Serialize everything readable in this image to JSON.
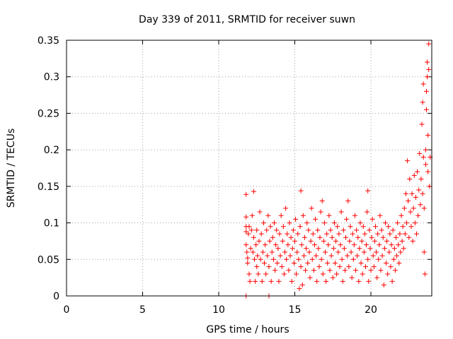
{
  "chart_data": {
    "type": "scatter",
    "title": "Day 339 of 2011, SRMTID for receiver suwn",
    "xlabel": "GPS time / hours",
    "ylabel": "SRMTID / TECUs",
    "xlim": [
      0,
      24
    ],
    "ylim": [
      0,
      0.35
    ],
    "xticks": [
      0,
      5,
      10,
      15,
      20
    ],
    "xtick_labels": [
      "0",
      "5",
      "10",
      "15",
      "20"
    ],
    "yticks": [
      0,
      0.05,
      0.1,
      0.15,
      0.2,
      0.25,
      0.3,
      0.35
    ],
    "ytick_labels": [
      "0",
      "0.05",
      "0.1",
      "0.15",
      "0.2",
      "0.25",
      "0.3",
      "0.35"
    ],
    "grid": true,
    "marker": "+",
    "color": "#ff0000",
    "series": [
      {
        "points": [
          [
            11.8,
            0.139
          ],
          [
            11.8,
            0.108
          ],
          [
            11.8,
            0.095
          ],
          [
            11.8,
            0.088
          ],
          [
            11.8,
            0.07
          ],
          [
            11.8,
            0.0
          ],
          [
            11.85,
            0.06
          ],
          [
            11.9,
            0.052
          ],
          [
            11.9,
            0.045
          ],
          [
            11.95,
            0.085
          ],
          [
            12.0,
            0.03
          ],
          [
            12.0,
            0.095
          ],
          [
            12.05,
            0.02
          ],
          [
            12.1,
            0.065
          ],
          [
            12.15,
            0.09
          ],
          [
            12.2,
            0.11
          ],
          [
            12.25,
            0.06
          ],
          [
            12.3,
            0.143
          ],
          [
            12.3,
            0.08
          ],
          [
            12.35,
            0.05
          ],
          [
            12.4,
            0.02
          ],
          [
            12.45,
            0.07
          ],
          [
            12.5,
            0.04
          ],
          [
            12.5,
            0.09
          ],
          [
            12.55,
            0.055
          ],
          [
            12.6,
            0.03
          ],
          [
            12.65,
            0.075
          ],
          [
            12.7,
            0.115
          ],
          [
            12.75,
            0.05
          ],
          [
            12.8,
            0.085
          ],
          [
            12.85,
            0.02
          ],
          [
            12.9,
            0.06
          ],
          [
            12.95,
            0.1
          ],
          [
            13.0,
            0.045
          ],
          [
            13.05,
            0.07
          ],
          [
            13.1,
            0.03
          ],
          [
            13.15,
            0.09
          ],
          [
            13.2,
            0.055
          ],
          [
            13.25,
            0.11
          ],
          [
            13.3,
            0.04
          ],
          [
            13.3,
            0.0
          ],
          [
            13.35,
            0.075
          ],
          [
            13.4,
            0.095
          ],
          [
            13.45,
            0.02
          ],
          [
            13.5,
            0.06
          ],
          [
            13.55,
            0.08
          ],
          [
            13.6,
            0.05
          ],
          [
            13.65,
            0.1
          ],
          [
            13.7,
            0.035
          ],
          [
            13.75,
            0.07
          ],
          [
            13.8,
            0.09
          ],
          [
            13.85,
            0.045
          ],
          [
            13.9,
            0.065
          ],
          [
            13.95,
            0.02
          ],
          [
            14.0,
            0.085
          ],
          [
            14.05,
            0.055
          ],
          [
            14.1,
            0.11
          ],
          [
            14.15,
            0.04
          ],
          [
            14.2,
            0.075
          ],
          [
            14.25,
            0.095
          ],
          [
            14.3,
            0.03
          ],
          [
            14.35,
            0.06
          ],
          [
            14.4,
            0.12
          ],
          [
            14.45,
            0.05
          ],
          [
            14.5,
            0.085
          ],
          [
            14.55,
            0.07
          ],
          [
            14.6,
            0.035
          ],
          [
            14.65,
            0.1
          ],
          [
            14.7,
            0.055
          ],
          [
            14.75,
            0.08
          ],
          [
            14.8,
            0.02
          ],
          [
            14.85,
            0.065
          ],
          [
            14.9,
            0.09
          ],
          [
            14.95,
            0.045
          ],
          [
            15.0,
            0.075
          ],
          [
            15.05,
            0.105
          ],
          [
            15.1,
            0.03
          ],
          [
            15.15,
            0.06
          ],
          [
            15.2,
            0.085
          ],
          [
            15.25,
            0.05
          ],
          [
            15.3,
            0.01
          ],
          [
            15.35,
            0.095
          ],
          [
            15.4,
            0.144
          ],
          [
            15.4,
            0.04
          ],
          [
            15.45,
            0.07
          ],
          [
            15.5,
            0.015
          ],
          [
            15.55,
            0.11
          ],
          [
            15.6,
            0.055
          ],
          [
            15.65,
            0.08
          ],
          [
            15.7,
            0.035
          ],
          [
            15.75,
            0.065
          ],
          [
            15.8,
            0.1
          ],
          [
            15.85,
            0.045
          ],
          [
            15.9,
            0.09
          ],
          [
            15.95,
            0.06
          ],
          [
            16.0,
            0.025
          ],
          [
            16.05,
            0.075
          ],
          [
            16.1,
            0.12
          ],
          [
            16.15,
            0.05
          ],
          [
            16.2,
            0.085
          ],
          [
            16.25,
            0.035
          ],
          [
            16.3,
            0.07
          ],
          [
            16.35,
            0.105
          ],
          [
            16.4,
            0.055
          ],
          [
            16.45,
            0.02
          ],
          [
            16.5,
            0.09
          ],
          [
            16.55,
            0.065
          ],
          [
            16.6,
            0.04
          ],
          [
            16.65,
            0.08
          ],
          [
            16.7,
            0.115
          ],
          [
            16.75,
            0.05
          ],
          [
            16.8,
            0.13
          ],
          [
            16.85,
            0.03
          ],
          [
            16.9,
            0.075
          ],
          [
            16.95,
            0.1
          ],
          [
            17.0,
            0.06
          ],
          [
            17.05,
            0.02
          ],
          [
            17.1,
            0.085
          ],
          [
            17.15,
            0.045
          ],
          [
            17.2,
            0.07
          ],
          [
            17.25,
            0.11
          ],
          [
            17.3,
            0.035
          ],
          [
            17.35,
            0.09
          ],
          [
            17.4,
            0.055
          ],
          [
            17.45,
            0.08
          ],
          [
            17.5,
            0.025
          ],
          [
            17.55,
            0.065
          ],
          [
            17.6,
            0.1
          ],
          [
            17.65,
            0.045
          ],
          [
            17.7,
            0.075
          ],
          [
            17.75,
            0.03
          ],
          [
            17.8,
            0.095
          ],
          [
            17.85,
            0.06
          ],
          [
            17.9,
            0.085
          ],
          [
            17.95,
            0.04
          ],
          [
            18.0,
            0.07
          ],
          [
            18.05,
            0.115
          ],
          [
            18.1,
            0.05
          ],
          [
            18.15,
            0.02
          ],
          [
            18.2,
            0.09
          ],
          [
            18.25,
            0.065
          ],
          [
            18.3,
            0.035
          ],
          [
            18.35,
            0.08
          ],
          [
            18.4,
            0.105
          ],
          [
            18.45,
            0.055
          ],
          [
            18.5,
            0.13
          ],
          [
            18.55,
            0.04
          ],
          [
            18.6,
            0.075
          ],
          [
            18.65,
            0.095
          ],
          [
            18.7,
            0.06
          ],
          [
            18.75,
            0.025
          ],
          [
            18.8,
            0.085
          ],
          [
            18.85,
            0.05
          ],
          [
            18.9,
            0.07
          ],
          [
            18.95,
            0.11
          ],
          [
            19.0,
            0.035
          ],
          [
            19.05,
            0.09
          ],
          [
            19.1,
            0.055
          ],
          [
            19.15,
            0.08
          ],
          [
            19.2,
            0.02
          ],
          [
            19.25,
            0.065
          ],
          [
            19.3,
            0.1
          ],
          [
            19.35,
            0.045
          ],
          [
            19.4,
            0.075
          ],
          [
            19.45,
            0.03
          ],
          [
            19.5,
            0.095
          ],
          [
            19.55,
            0.06
          ],
          [
            19.6,
            0.085
          ],
          [
            19.65,
            0.04
          ],
          [
            19.7,
            0.07
          ],
          [
            19.75,
            0.115
          ],
          [
            19.8,
            0.144
          ],
          [
            19.8,
            0.05
          ],
          [
            19.85,
            0.02
          ],
          [
            19.9,
            0.09
          ],
          [
            19.95,
            0.065
          ],
          [
            20.0,
            0.035
          ],
          [
            20.05,
            0.08
          ],
          [
            20.1,
            0.105
          ],
          [
            20.15,
            0.055
          ],
          [
            20.2,
            0.04
          ],
          [
            20.25,
            0.075
          ],
          [
            20.3,
            0.095
          ],
          [
            20.35,
            0.06
          ],
          [
            20.4,
            0.025
          ],
          [
            20.45,
            0.085
          ],
          [
            20.5,
            0.05
          ],
          [
            20.55,
            0.07
          ],
          [
            20.6,
            0.11
          ],
          [
            20.65,
            0.035
          ],
          [
            20.7,
            0.09
          ],
          [
            20.75,
            0.055
          ],
          [
            20.8,
            0.08
          ],
          [
            20.85,
            0.015
          ],
          [
            20.9,
            0.065
          ],
          [
            20.95,
            0.1
          ],
          [
            21.0,
            0.045
          ],
          [
            21.05,
            0.075
          ],
          [
            21.1,
            0.03
          ],
          [
            21.15,
            0.095
          ],
          [
            21.2,
            0.06
          ],
          [
            21.25,
            0.085
          ],
          [
            21.3,
            0.04
          ],
          [
            21.35,
            0.07
          ],
          [
            21.4,
            0.02
          ],
          [
            21.45,
            0.09
          ],
          [
            21.5,
            0.05
          ],
          [
            21.55,
            0.065
          ],
          [
            21.6,
            0.035
          ],
          [
            21.65,
            0.08
          ],
          [
            21.7,
            0.055
          ],
          [
            21.75,
            0.1
          ],
          [
            21.8,
            0.07
          ],
          [
            21.85,
            0.045
          ],
          [
            21.9,
            0.085
          ],
          [
            21.95,
            0.06
          ],
          [
            22.0,
            0.11
          ],
          [
            22.05,
            0.075
          ],
          [
            22.1,
            0.095
          ],
          [
            22.15,
            0.065
          ],
          [
            22.2,
            0.12
          ],
          [
            22.25,
            0.085
          ],
          [
            22.3,
            0.14
          ],
          [
            22.35,
            0.1
          ],
          [
            22.4,
            0.185
          ],
          [
            22.45,
            0.13
          ],
          [
            22.5,
            0.08
          ],
          [
            22.55,
            0.16
          ],
          [
            22.6,
            0.115
          ],
          [
            22.65,
            0.095
          ],
          [
            22.7,
            0.14
          ],
          [
            22.75,
            0.075
          ],
          [
            22.8,
            0.12
          ],
          [
            22.85,
            0.165
          ],
          [
            22.9,
            0.1
          ],
          [
            22.95,
            0.135
          ],
          [
            23.0,
            0.085
          ],
          [
            23.05,
            0.17
          ],
          [
            23.1,
            0.11
          ],
          [
            23.15,
            0.145
          ],
          [
            23.2,
            0.195
          ],
          [
            23.25,
            0.125
          ],
          [
            23.3,
            0.16
          ],
          [
            23.35,
            0.235
          ],
          [
            23.4,
            0.14
          ],
          [
            23.4,
            0.265
          ],
          [
            23.45,
            0.29
          ],
          [
            23.45,
            0.19
          ],
          [
            23.5,
            0.12
          ],
          [
            23.5,
            0.06
          ],
          [
            23.55,
            0.03
          ],
          [
            23.6,
            0.18
          ],
          [
            23.6,
            0.2
          ],
          [
            23.65,
            0.255
          ],
          [
            23.65,
            0.28
          ],
          [
            23.7,
            0.3
          ],
          [
            23.7,
            0.32
          ],
          [
            23.75,
            0.22
          ],
          [
            23.75,
            0.17
          ],
          [
            23.8,
            0.31
          ],
          [
            23.8,
            0.345
          ],
          [
            23.85,
            0.15
          ],
          [
            23.9,
            0.19
          ]
        ]
      }
    ]
  }
}
